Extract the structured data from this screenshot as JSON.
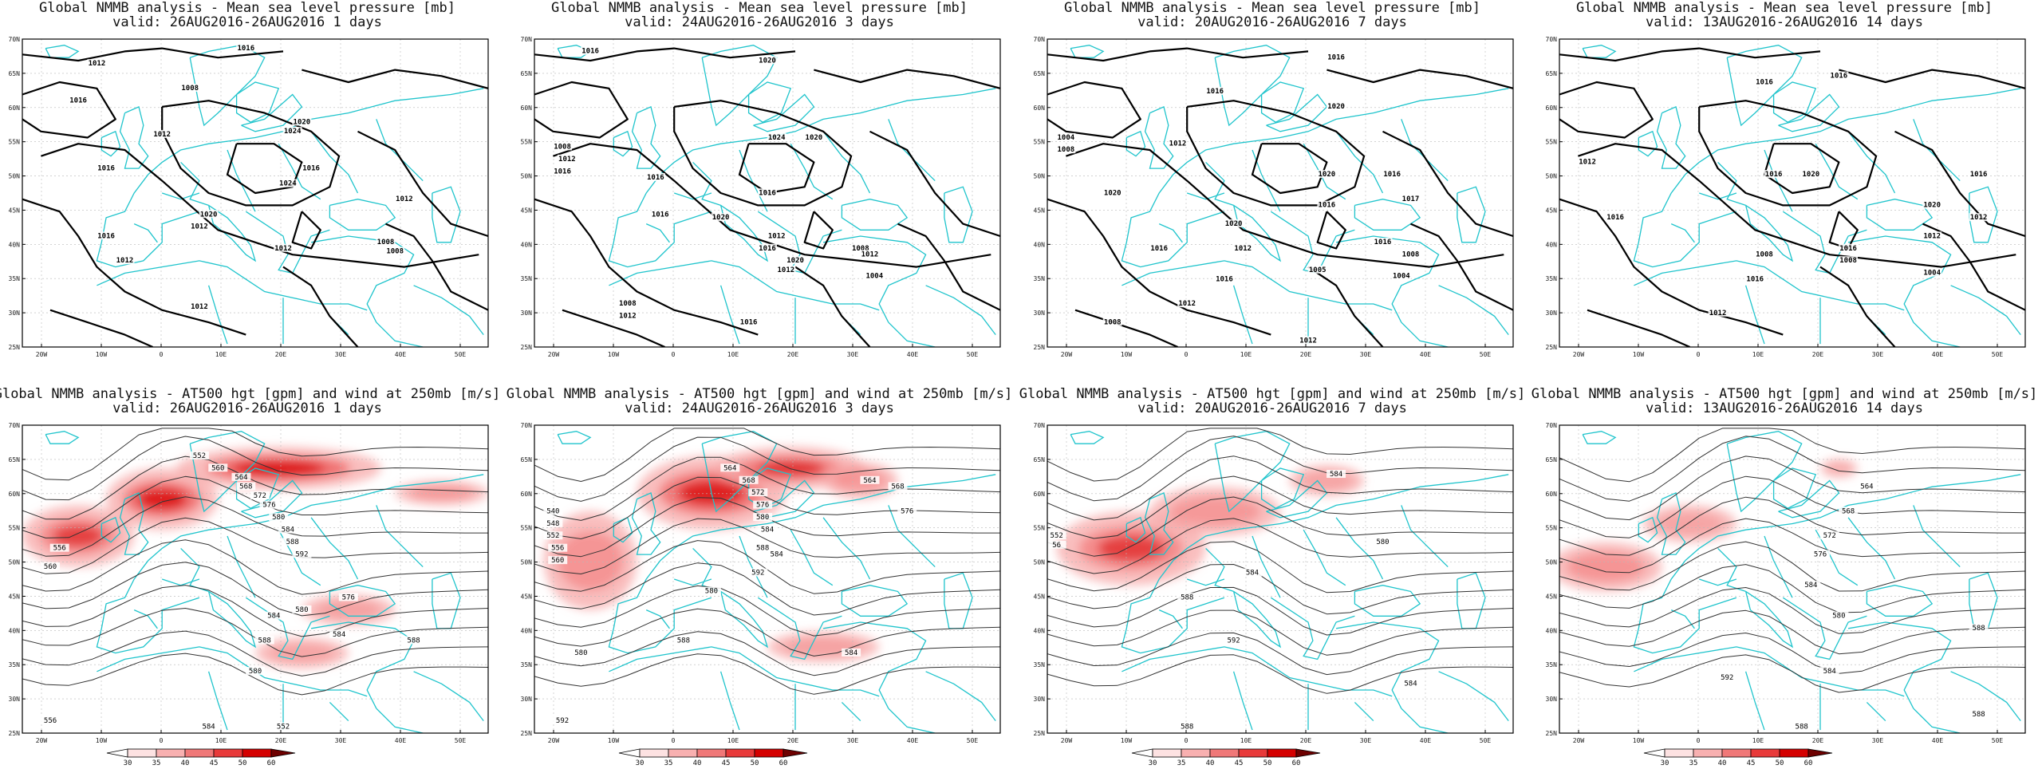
{
  "panels": [
    {
      "title": "Global NMMB analysis - Mean sea level pressure [mb]",
      "valid": "valid: 26AUG2016-26AUG2016   1 days",
      "labels": [
        "1016",
        "1012",
        "1008",
        "1016",
        "1020",
        "1024",
        "1012",
        "1016",
        "1020",
        "1024",
        "1012",
        "1016",
        "1012",
        "1016",
        "1012",
        "1008",
        "1012",
        "1008",
        "1012"
      ]
    },
    {
      "title": "Global NMMB analysis - Mean sea level pressure [mb]",
      "valid": "valid: 24AUG2016-26AUG2016   3 days",
      "labels": [
        "1016",
        "1020",
        "1008",
        "1012",
        "1016",
        "1016",
        "1024",
        "1020",
        "1016",
        "1020",
        "1016",
        "1012",
        "1016",
        "1020",
        "1012",
        "1008",
        "1004",
        "1012",
        "1008",
        "1012",
        "1016"
      ]
    },
    {
      "title": "Global NMMB analysis - Mean sea level pressure [mb]",
      "valid": "valid: 20AUG2016-26AUG2016   7 days",
      "labels": [
        "1016",
        "1020",
        "1016",
        "1004",
        "1008",
        "1012",
        "1020",
        "1016",
        "1020",
        "1016",
        "1017",
        "1020",
        "1016",
        "1012",
        "1016",
        "1008",
        "1004",
        "1016",
        "1005",
        "1012",
        "1008",
        "1012"
      ]
    },
    {
      "title": "Global NMMB analysis - Mean sea level pressure [mb]",
      "valid": "valid: 13AUG2016-26AUG2016   14 days",
      "labels": [
        "1016",
        "1016",
        "1012",
        "1016",
        "1020",
        "1016",
        "1020",
        "1012",
        "1016",
        "1012",
        "1016",
        "1008",
        "1008",
        "1004",
        "1012",
        "1016"
      ]
    },
    {
      "title": "Global NMMB analysis - AT500 hgt [gpm] and wind at 250mb [m/s]",
      "valid": "valid: 26AUG2016-26AUG2016   1 days",
      "labels": [
        "552",
        "560",
        "564",
        "568",
        "572",
        "576",
        "580",
        "584",
        "588",
        "592",
        "556",
        "560",
        "576",
        "584",
        "580",
        "584",
        "588",
        "588",
        "580",
        "584",
        "552",
        "556"
      ]
    },
    {
      "title": "Global NMMB analysis - AT500 hgt [gpm] and wind at 250mb [m/s]",
      "valid": "valid: 24AUG2016-26AUG2016   3 days",
      "labels": [
        "540",
        "548",
        "552",
        "556",
        "560",
        "564",
        "568",
        "572",
        "576",
        "580",
        "584",
        "588",
        "592",
        "564",
        "568",
        "576",
        "580",
        "584",
        "580",
        "588",
        "592",
        "584"
      ]
    },
    {
      "title": "Global NMMB analysis - AT500 hgt [gpm] and wind at 250mb [m/s]",
      "valid": "valid: 20AUG2016-26AUG2016   7 days",
      "labels": [
        "552",
        "56",
        "584",
        "580",
        "588",
        "584",
        "592",
        "584",
        "588"
      ]
    },
    {
      "title": "Global NMMB analysis - AT500 hgt [gpm] and wind at 250mb [m/s]",
      "valid": "valid: 13AUG2016-26AUG2016   14 days",
      "labels": [
        "564",
        "568",
        "572",
        "576",
        "584",
        "580",
        "588",
        "592",
        "584",
        "588",
        "588"
      ]
    }
  ],
  "lat_ticks": [
    "70N",
    "65N",
    "60N",
    "55N",
    "50N",
    "45N",
    "40N",
    "35N",
    "30N",
    "25N"
  ],
  "lon_ticks": [
    "20W",
    "10W",
    "0",
    "10E",
    "20E",
    "30E",
    "40E",
    "50E"
  ],
  "colorbar_ticks": [
    "30",
    "35",
    "40",
    "45",
    "50",
    "60"
  ],
  "colors": {
    "coast": "#1fc4cc",
    "contour": "#000000",
    "grid": "#b8b8b8",
    "jet": "#e00000",
    "colorbar": [
      "#ffffff",
      "#fde2e2",
      "#f8b0b0",
      "#f07878",
      "#e83a3a",
      "#d40000",
      "#6e0000"
    ]
  }
}
